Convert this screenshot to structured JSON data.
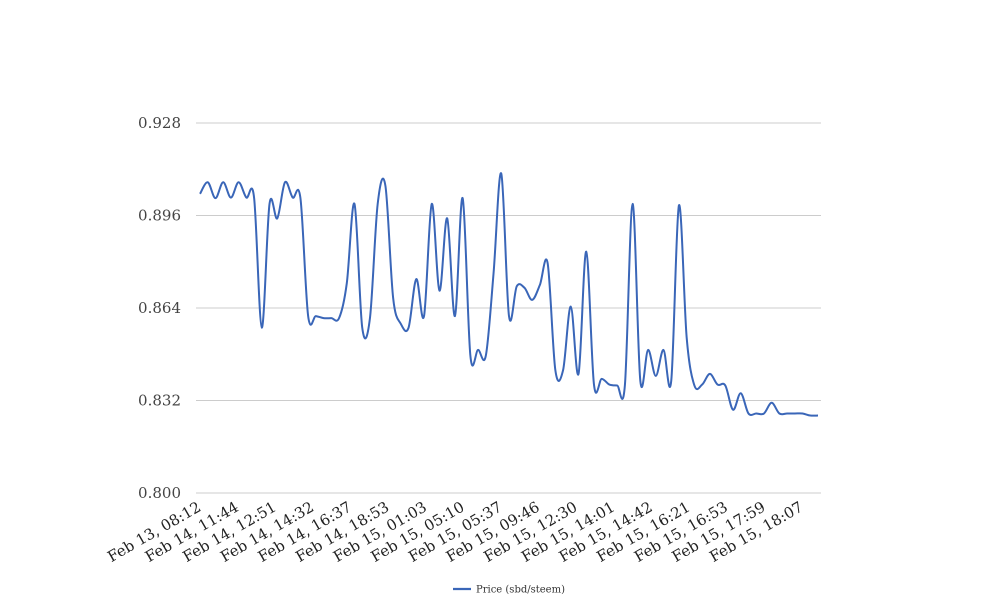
{
  "chart_data": {
    "type": "line",
    "title": "",
    "xlabel": "",
    "ylabel": "",
    "ylim": [
      0.8,
      0.928
    ],
    "yticks": [
      "0.800",
      "0.832",
      "0.864",
      "0.896",
      "0.928"
    ],
    "xticks": [
      "Feb 13, 08:12",
      "Feb 14, 11:44",
      "Feb 14, 12:51",
      "Feb 14, 14:32",
      "Feb 14, 16:37",
      "Feb 14, 18:53",
      "Feb 15, 01:03",
      "Feb 15, 05:10",
      "Feb 15, 05:37",
      "Feb 15, 09:46",
      "Feb 15, 12:30",
      "Feb 15, 14:01",
      "Feb 15, 14:42",
      "Feb 15, 16:21",
      "Feb 15, 16:53",
      "Feb 15, 17:59",
      "Feb 15, 18:07"
    ],
    "grid": true,
    "legend_position": "bottom",
    "series": [
      {
        "name": "Price (sbd/steem)",
        "color": "#3a66b8",
        "values": [
          0.9035,
          0.9075,
          0.902,
          0.9075,
          0.9022,
          0.9075,
          0.9022,
          0.9022,
          0.8572,
          0.9,
          0.895,
          0.9075,
          0.9022,
          0.902,
          0.8612,
          0.8612,
          0.8605,
          0.8605,
          0.8605,
          0.8725,
          0.9,
          0.8572,
          0.8605,
          0.9,
          0.9063,
          0.8675,
          0.8585,
          0.8572,
          0.874,
          0.8612,
          0.9,
          0.87,
          0.895,
          0.8612,
          0.902,
          0.8475,
          0.8495,
          0.8475,
          0.876,
          0.9105,
          0.8612,
          0.8715,
          0.871,
          0.8668,
          0.872,
          0.8795,
          0.8425,
          0.8425,
          0.8645,
          0.8412,
          0.8835,
          0.8375,
          0.8395,
          0.8375,
          0.8372,
          0.8372,
          0.9,
          0.8388,
          0.8495,
          0.8405,
          0.8495,
          0.8388,
          0.8995,
          0.8538,
          0.8372,
          0.8375,
          0.8412,
          0.8375,
          0.8372,
          0.8288,
          0.8345,
          0.8275,
          0.8275,
          0.8275,
          0.8312,
          0.8275,
          0.8275,
          0.8275,
          0.8275,
          0.8268,
          0.8268
        ]
      }
    ]
  }
}
